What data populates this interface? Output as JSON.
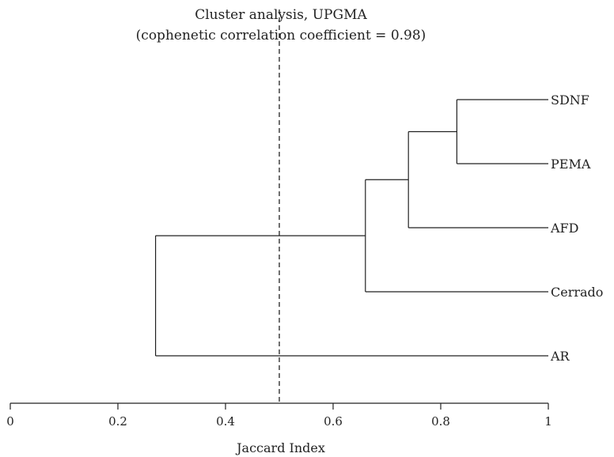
{
  "title": {
    "line1": "Cluster analysis, UPGMA",
    "line2": "(cophenetic correlation coefficient = 0.98)"
  },
  "axis": {
    "label": "Jaccard Index",
    "ticks": [
      {
        "value": 0,
        "label": "0"
      },
      {
        "value": 0.2,
        "label": "0.2"
      },
      {
        "value": 0.4,
        "label": "0.4"
      },
      {
        "value": 0.6,
        "label": "0.6"
      },
      {
        "value": 0.8,
        "label": "0.8"
      },
      {
        "value": 1,
        "label": "1"
      }
    ],
    "range": [
      0,
      1
    ]
  },
  "cutoff_line": {
    "value": 0.5,
    "style": "dashed"
  },
  "leaves": [
    "SDNF",
    "PEMA",
    "AFD",
    "Cerrado",
    "AR"
  ],
  "clusters": [
    {
      "members": [
        "SDNF",
        "PEMA"
      ],
      "similarity": 0.83
    },
    {
      "members": [
        "SDNF",
        "PEMA",
        "AFD"
      ],
      "similarity": 0.74
    },
    {
      "members": [
        "SDNF",
        "PEMA",
        "AFD",
        "Cerrado"
      ],
      "similarity": 0.66
    },
    {
      "members": [
        "SDNF",
        "PEMA",
        "AFD",
        "Cerrado",
        "AR"
      ],
      "similarity": 0.27
    }
  ]
}
